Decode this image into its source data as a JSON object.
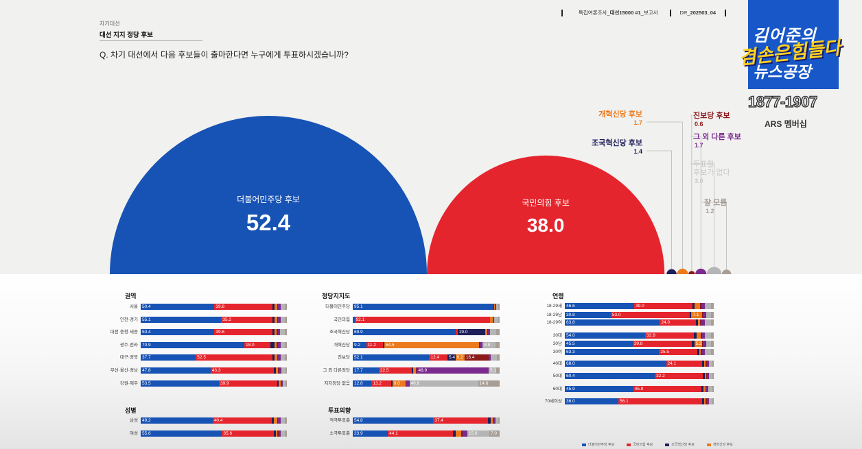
{
  "header": {
    "small_label": "차기대선",
    "title": "대선 지지 정당 후보",
    "question": "Q. 차기 대선에서 다음 후보들이 출마한다면 누구에게 투표하시겠습니까?",
    "report_prefix": "특집여론조사_",
    "report_name": "대선15000 #1",
    "report_suffix": "_보고서",
    "report_code": "DR_202503_04"
  },
  "logo": {
    "line1": "김어준의",
    "line2": "겸손은힘들다",
    "line3": "뉴스공장",
    "phone": "1877-1907",
    "membership": "ARS 멤버십"
  },
  "colors": {
    "democratic": "#1753b4",
    "ppp": "#e5252d",
    "rebuilding": "#1e1e5a",
    "reform": "#ec7a1c",
    "progressive": "#8b1a1a",
    "other": "#7b2a8e",
    "none": "#b5b5b5",
    "unknown": "#a89e96"
  },
  "chart_data": [
    {
      "type": "bubble",
      "title": "대선 지지 정당 후보",
      "series": [
        {
          "name": "더불어민주당 후보",
          "value": 52.4
        },
        {
          "name": "국민의힘 후보",
          "value": 38.0
        },
        {
          "name": "조국혁신당 후보",
          "value": 1.4
        },
        {
          "name": "개혁신당 후보",
          "value": 1.7
        },
        {
          "name": "진보당 후보",
          "value": 0.6
        },
        {
          "name": "그 외 다른 후보",
          "value": 1.7
        },
        {
          "name": "투표할 후보가 없다",
          "value": 3.0
        },
        {
          "name": "잘 모름",
          "value": 1.2
        }
      ]
    },
    {
      "type": "stacked-bar",
      "title": "권역",
      "rows": [
        {
          "label": "서울",
          "segments": [
            50.4,
            39.8,
            1.4,
            1.7,
            0.6,
            1.7,
            3.0,
            1.4
          ],
          "labels": [
            "50.4",
            "39.8"
          ]
        },
        {
          "label": "인천·경기",
          "segments": [
            55.1,
            35.2,
            1.4,
            1.7,
            0.6,
            1.7,
            3.0,
            1.3
          ],
          "labels": [
            "55.1",
            "35.2"
          ]
        },
        {
          "label": "대전·충청·세종",
          "segments": [
            50.4,
            39.6,
            1.4,
            1.7,
            0.6,
            1.7,
            3.0,
            1.6
          ],
          "labels": [
            "50.4",
            "39.6"
          ]
        },
        {
          "label": "광주·전라",
          "segments": [
            70.9,
            18.0,
            2.5,
            1.5,
            1.0,
            1.7,
            3.0,
            1.4
          ],
          "labels": [
            "70.9",
            "18.0"
          ]
        },
        {
          "label": "대구·경북",
          "segments": [
            37.7,
            52.5,
            1.4,
            1.7,
            0.6,
            1.7,
            3.0,
            1.4
          ],
          "labels": [
            "37.7",
            "52.5"
          ]
        },
        {
          "label": "부산·울산·경남",
          "segments": [
            47.8,
            43.3,
            1.2,
            1.7,
            0.6,
            1.7,
            2.6,
            1.1
          ],
          "labels": [
            "47.8",
            "43.3"
          ]
        },
        {
          "label": "강원·제주",
          "segments": [
            53.5,
            39.9,
            1.0,
            1.3,
            0.4,
            1.2,
            1.8,
            0.9
          ],
          "labels": [
            "53.5",
            "39.9"
          ]
        }
      ]
    },
    {
      "type": "stacked-bar",
      "title": "성별",
      "rows": [
        {
          "label": "남성",
          "segments": [
            49.2,
            40.4,
            1.6,
            2.2,
            0.6,
            1.8,
            2.8,
            1.4
          ],
          "labels": [
            "49.2",
            "40.4"
          ]
        },
        {
          "label": "여성",
          "segments": [
            55.6,
            35.6,
            1.2,
            1.2,
            0.6,
            1.6,
            3.0,
            1.2
          ],
          "labels": [
            "55.6",
            "35.6"
          ]
        }
      ]
    },
    {
      "type": "stacked-bar",
      "title": "정당지지도",
      "rows": [
        {
          "label": "더불어민주당",
          "segments": [
            95.1,
            0.8,
            0.6,
            0.3,
            0.2,
            0.6,
            1.5,
            0.9
          ],
          "labels": [
            "95.1",
            ""
          ]
        },
        {
          "label": "국민의힘",
          "segments": [
            1.2,
            92.1,
            0.3,
            1.5,
            0.1,
            1.2,
            2.5,
            1.1
          ],
          "labels": [
            "",
            "92.1"
          ]
        },
        {
          "label": "조국혁신당",
          "segments": [
            69.9,
            1.5,
            19.0,
            1.2,
            0.5,
            1.5,
            4.0,
            2.4
          ],
          "labels": [
            "69.9",
            "",
            "19.0"
          ]
        },
        {
          "label": "개혁신당",
          "segments": [
            9.2,
            11.2,
            1.1,
            64.5,
            0.5,
            2.0,
            8.8,
            2.7
          ],
          "labels": [
            "9.2",
            "11.2",
            "",
            "64.5",
            "",
            "",
            "8.8"
          ]
        },
        {
          "label": "진보당",
          "segments": [
            52.1,
            12.4,
            5.4,
            6.2,
            16.4,
            1.5,
            4.0,
            2.0
          ],
          "labels": [
            "52.1",
            "12.4",
            "5.4",
            "6.2",
            "16.4"
          ]
        },
        {
          "label": "그 외 다른정당",
          "segments": [
            17.7,
            22.5,
            1.0,
            2.0,
            0.5,
            48.9,
            5.1,
            2.3
          ],
          "labels": [
            "17.7",
            "22.5",
            "",
            "",
            "",
            "48.9",
            "5.1"
          ]
        },
        {
          "label": "지지정당 없음",
          "segments": [
            12.8,
            13.2,
            1.0,
            9.0,
            0.6,
            2.0,
            46.8,
            14.6
          ],
          "labels": [
            "12.8",
            "13.2",
            "",
            "9.0",
            "",
            "",
            "46.8",
            "14.6"
          ]
        }
      ]
    },
    {
      "type": "stacked-bar",
      "title": "투표의향",
      "rows": [
        {
          "label": "적극투표층",
          "segments": [
            54.8,
            37.4,
            1.6,
            1.6,
            0.6,
            1.4,
            1.6,
            1.0
          ],
          "labels": [
            "54.8",
            "37.4"
          ]
        },
        {
          "label": "소극투표층",
          "segments": [
            23.9,
            44.1,
            2.0,
            4.0,
            1.0,
            3.0,
            15.0,
            7.0
          ],
          "labels": [
            "23.9",
            "44.1",
            "",
            "",
            "",
            "",
            "15.0",
            "7.0"
          ]
        }
      ]
    },
    {
      "type": "stacked-bar",
      "title": "연령",
      "rows": [
        {
          "label": "18-29세",
          "segments": [
            46.6,
            39.0,
            1.4,
            4.0,
            0.6,
            2.4,
            4.0,
            2.0
          ],
          "labels": [
            "46.6",
            "39.0"
          ]
        },
        {
          "label": "18-29남",
          "segments": [
            30.8,
            53.0,
            1.2,
            7.1,
            0.6,
            2.3,
            3.0,
            2.0
          ],
          "labels": [
            "30.8",
            "53.0",
            "",
            "7.1"
          ]
        },
        {
          "label": "18-29여",
          "segments": [
            63.8,
            24.0,
            1.6,
            1.2,
            0.6,
            2.8,
            4.0,
            2.0
          ],
          "labels": [
            "63.8",
            "24.0"
          ]
        },
        {
          "label": "30대",
          "segments": [
            54.0,
            32.8,
            1.6,
            3.0,
            0.6,
            2.0,
            4.0,
            2.0
          ],
          "labels": [
            "54.0",
            "32.8"
          ]
        },
        {
          "label": "30남",
          "segments": [
            45.5,
            39.8,
            1.6,
            5.2,
            0.6,
            2.3,
            3.0,
            2.0
          ],
          "labels": [
            "45.5",
            "39.8",
            "",
            "5.2"
          ]
        },
        {
          "label": "30여",
          "segments": [
            63.3,
            25.5,
            1.6,
            1.0,
            0.6,
            2.0,
            4.0,
            2.0
          ],
          "labels": [
            "63.3",
            "25.5"
          ]
        },
        {
          "label": "40대",
          "segments": [
            68.0,
            24.1,
            1.4,
            1.2,
            0.6,
            1.5,
            2.2,
            1.0
          ],
          "labels": [
            "68.0",
            "24.1"
          ]
        },
        {
          "label": "50대",
          "segments": [
            60.4,
            32.2,
            1.4,
            1.0,
            0.6,
            1.4,
            2.0,
            1.0
          ],
          "labels": [
            "60.4",
            "32.2"
          ]
        },
        {
          "label": "60대",
          "segments": [
            45.9,
            45.8,
            1.4,
            1.2,
            0.6,
            1.6,
            2.4,
            1.1
          ],
          "labels": [
            "45.9",
            "45.8"
          ]
        },
        {
          "label": "70세이상",
          "segments": [
            36.0,
            56.1,
            1.4,
            1.2,
            0.6,
            1.4,
            2.2,
            1.1
          ],
          "labels": [
            "36.0",
            "56.1"
          ]
        }
      ]
    }
  ],
  "legend": {
    "items": [
      "더불어민주당 후보",
      "국민의힘 후보",
      "조국혁신당 후보",
      "개혁신당 후보"
    ]
  }
}
